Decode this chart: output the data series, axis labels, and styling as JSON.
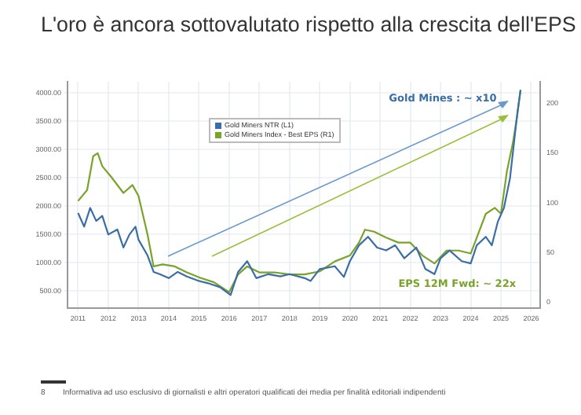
{
  "chart_data": {
    "type": "line",
    "title": "L'oro è ancora sottovalutato rispetto alla crescita dell'EPS",
    "annotations": [
      "Gold Mines : ~ x10",
      "EPS 12M Fwd: ~ 22x",
      "8",
      "Informativa ad uso esclusivo di giornalisti e altri operatori qualificati dei media per finalità editoriali indipendenti"
    ],
    "series": [
      {
        "name": "Gold Miners NTR (L1)",
        "color": "#3a6ea5",
        "x": [
          2011.0,
          2011.2,
          2011.4,
          2011.6,
          2011.8,
          2012.0,
          2012.3,
          2012.5,
          2012.7,
          2012.9,
          2013.0,
          2013.3,
          2013.5,
          2013.7,
          2014.0,
          2014.3,
          2014.6,
          2015.0,
          2015.3,
          2015.7,
          2016.05,
          2016.3,
          2016.6,
          2016.9,
          2017.3,
          2017.7,
          2018.0,
          2018.5,
          2018.7,
          2019.0,
          2019.5,
          2019.8,
          2020.0,
          2020.3,
          2020.6,
          2020.9,
          2021.2,
          2021.5,
          2021.8,
          2022.2,
          2022.5,
          2022.8,
          2023.0,
          2023.3,
          2023.7,
          2024.0,
          2024.2,
          2024.5,
          2024.7,
          2024.9,
          2025.1,
          2025.3,
          2025.45,
          2025.55,
          2025.65
        ],
        "values": [
          1880,
          1640,
          1970,
          1740,
          1830,
          1500,
          1590,
          1270,
          1500,
          1640,
          1410,
          1130,
          840,
          800,
          730,
          840,
          760,
          680,
          640,
          570,
          430,
          840,
          1030,
          730,
          800,
          760,
          800,
          730,
          680,
          890,
          940,
          750,
          1030,
          1310,
          1460,
          1270,
          1220,
          1310,
          1080,
          1270,
          890,
          800,
          1080,
          1220,
          1030,
          990,
          1310,
          1460,
          1310,
          1730,
          1970,
          2490,
          3200,
          3670,
          4050
        ]
      },
      {
        "name": "Gold Miners Index - Best EPS (R1)",
        "color": "#7aa32a",
        "axis": "y2",
        "x": [
          2011.0,
          2011.3,
          2011.5,
          2011.65,
          2011.8,
          2012.1,
          2012.5,
          2012.8,
          2013.0,
          2013.3,
          2013.5,
          2013.8,
          2014.2,
          2014.6,
          2015.0,
          2015.5,
          2016.0,
          2016.3,
          2016.6,
          2017.0,
          2017.5,
          2018.0,
          2018.5,
          2019.0,
          2019.5,
          2020.0,
          2020.3,
          2020.5,
          2020.8,
          2021.2,
          2021.6,
          2022.0,
          2022.4,
          2022.8,
          2023.2,
          2023.6,
          2024.0,
          2024.2,
          2024.5,
          2024.8,
          2025.0,
          2025.2,
          2025.4,
          2025.55,
          2025.65
        ],
        "values": [
          102,
          113,
          147,
          150,
          137,
          126,
          110,
          118,
          107,
          68,
          36,
          38,
          36,
          30,
          25,
          20,
          10,
          28,
          36,
          30,
          30,
          28,
          28,
          31,
          41,
          47,
          60,
          73,
          71,
          65,
          60,
          60,
          47,
          39,
          52,
          52,
          49,
          65,
          89,
          95,
          89,
          132,
          161,
          190,
          214
        ]
      }
    ],
    "xlim": [
      2010.65,
      2026.3
    ],
    "xticks": [
      2011,
      2012,
      2013,
      2014,
      2015,
      2016,
      2017,
      2018,
      2019,
      2020,
      2021,
      2022,
      2023,
      2024,
      2025,
      2026
    ],
    "ylim": [
      200,
      4200
    ],
    "yticks": [
      {
        "value": 500,
        "label": "500.00"
      },
      {
        "value": 1000,
        "label": "1000.00"
      },
      {
        "value": 1500,
        "label": "1500.00"
      },
      {
        "value": 2000,
        "label": "2000.00"
      },
      {
        "value": 2500,
        "label": "2500.00"
      },
      {
        "value": 3000,
        "label": "3000.00"
      },
      {
        "value": 3500,
        "label": "3500.00"
      },
      {
        "value": 4000,
        "label": "4000.00"
      }
    ],
    "y2lim": [
      -6,
      222
    ],
    "y2ticks": [
      0,
      50,
      100,
      150,
      200
    ],
    "grid": true,
    "legend": "top",
    "line_style": "solid",
    "marker": "none"
  }
}
